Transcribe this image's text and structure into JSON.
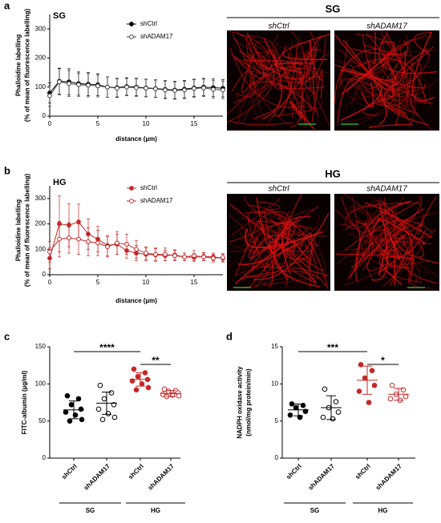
{
  "chart_data": [
    {
      "type": "line",
      "panel": "a",
      "title": "SG",
      "xlabel": "distance (µm)",
      "ylabel": [
        "Phalloidine labelling",
        "(% of mean of fluorescence labelling)"
      ],
      "x": [
        0,
        1,
        2,
        3,
        4,
        5,
        6,
        7,
        8,
        9,
        10,
        11,
        12,
        13,
        14,
        15,
        16,
        17,
        18
      ],
      "xlim": [
        0,
        18
      ],
      "xticks": [
        0,
        5,
        10,
        15
      ],
      "ylim": [
        0,
        350
      ],
      "yticks": [
        0,
        100,
        200,
        300
      ],
      "legend": "top",
      "series": [
        {
          "name": "shCtrl",
          "color": "#000000",
          "marker": "filled",
          "values": [
            80,
            120,
            118,
            112,
            110,
            108,
            100,
            98,
            102,
            100,
            97,
            95,
            92,
            90,
            93,
            97,
            100,
            98,
            96
          ],
          "errors": [
            35,
            45,
            45,
            40,
            40,
            38,
            35,
            32,
            30,
            30,
            30,
            30,
            30,
            30,
            30,
            30,
            30,
            30,
            30
          ]
        },
        {
          "name": "shADAM17",
          "color": "#444444",
          "marker": "open",
          "values": [
            70,
            118,
            112,
            108,
            106,
            104,
            100,
            96,
            100,
            98,
            96,
            94,
            90,
            88,
            90,
            95,
            97,
            92,
            90
          ],
          "errors": [
            35,
            45,
            45,
            40,
            40,
            38,
            35,
            32,
            30,
            30,
            30,
            30,
            30,
            30,
            30,
            30,
            30,
            30,
            30
          ]
        }
      ]
    },
    {
      "type": "line",
      "panel": "b",
      "title": "HG",
      "xlabel": "distance (µm)",
      "ylabel": [
        "Phalloidine labelling",
        "(% of mean of fluorescence labelling)"
      ],
      "x": [
        0,
        1,
        2,
        3,
        4,
        5,
        6,
        7,
        8,
        9,
        10,
        11,
        12,
        13,
        14,
        15,
        16,
        17,
        18
      ],
      "xlim": [
        0,
        18
      ],
      "xticks": [
        0,
        5,
        10,
        15
      ],
      "ylim": [
        0,
        350
      ],
      "yticks": [
        0,
        100,
        200,
        300
      ],
      "legend": "top",
      "series": [
        {
          "name": "shCtrl",
          "color": "#c62828",
          "marker": "filled",
          "values": [
            65,
            200,
            195,
            208,
            160,
            140,
            115,
            120,
            95,
            85,
            80,
            78,
            75,
            78,
            70,
            68,
            72,
            70,
            65
          ],
          "errors": [
            40,
            110,
            85,
            70,
            60,
            50,
            40,
            40,
            30,
            30,
            25,
            25,
            20,
            20,
            15,
            15,
            15,
            15,
            15
          ]
        },
        {
          "name": "shADAM17",
          "color": "#c62828",
          "marker": "open",
          "values": [
            90,
            140,
            145,
            140,
            130,
            125,
            110,
            125,
            120,
            100,
            85,
            80,
            80,
            75,
            70,
            75,
            70,
            65,
            68
          ],
          "errors": [
            40,
            70,
            60,
            60,
            55,
            50,
            40,
            45,
            40,
            35,
            25,
            25,
            25,
            20,
            15,
            20,
            15,
            15,
            15
          ]
        }
      ]
    },
    {
      "type": "dot",
      "panel": "c",
      "ylabel": [
        "FITC-albumin (µg/ml)"
      ],
      "categories": [
        "shCtrl",
        "shADAM17",
        "shCtrl",
        "shADAM17"
      ],
      "groups": [
        "SG",
        "HG"
      ],
      "colors": [
        "#000000",
        "#000000",
        "#c62828",
        "#c62828"
      ],
      "markers": [
        "filled",
        "open",
        "filled",
        "open"
      ],
      "ylim": [
        0,
        150
      ],
      "yticks": [
        0,
        50,
        100,
        150
      ],
      "values": [
        65,
        74,
        106,
        87
      ],
      "errors": [
        12,
        15,
        9,
        4
      ],
      "points": [
        [
          84,
          80,
          72,
          66,
          62,
          58,
          52,
          50
        ],
        [
          98,
          88,
          80,
          72,
          66,
          60,
          55,
          52
        ],
        [
          120,
          115,
          110,
          106,
          104,
          100,
          95,
          92
        ],
        [
          93,
          91,
          90,
          88,
          86,
          85,
          84,
          83
        ]
      ],
      "brackets": [
        {
          "label": "****",
          "from": 0,
          "to": 2
        },
        {
          "label": "**",
          "from": 2,
          "to": 3
        }
      ]
    },
    {
      "type": "dot",
      "panel": "d",
      "ylabel": [
        "NADPH oxidase activity",
        "(nmol/mg protein/min)"
      ],
      "categories": [
        "shCtrl",
        "shADAM17",
        "shCtrl",
        "shADAM17"
      ],
      "groups": [
        "SG",
        "HG"
      ],
      "colors": [
        "#000000",
        "#000000",
        "#c62828",
        "#c62828"
      ],
      "markers": [
        "filled",
        "open",
        "filled",
        "open"
      ],
      "ylim": [
        0,
        15
      ],
      "yticks": [
        0,
        5,
        10,
        15
      ],
      "values": [
        6.5,
        6.8,
        10.5,
        8.6
      ],
      "errors": [
        0.8,
        1.6,
        1.9,
        0.8
      ],
      "points": [
        [
          7.3,
          7.1,
          6.8,
          6.3,
          5.8,
          5.5
        ],
        [
          9.3,
          7.6,
          6.8,
          6.2,
          5.5,
          5.3
        ],
        [
          12.6,
          11.8,
          10.8,
          9.8,
          9.0,
          7.5
        ],
        [
          9.8,
          9.2,
          8.6,
          8.3,
          8.0,
          7.8
        ]
      ],
      "brackets": [
        {
          "label": "***",
          "from": 0,
          "to": 2
        },
        {
          "label": "*",
          "from": 2,
          "to": 3
        }
      ]
    }
  ],
  "images": [
    {
      "title": "SG",
      "labels": [
        "shCtrl",
        "shADAM17"
      ]
    },
    {
      "title": "HG",
      "labels": [
        "shCtrl",
        "shADAM17"
      ]
    }
  ]
}
